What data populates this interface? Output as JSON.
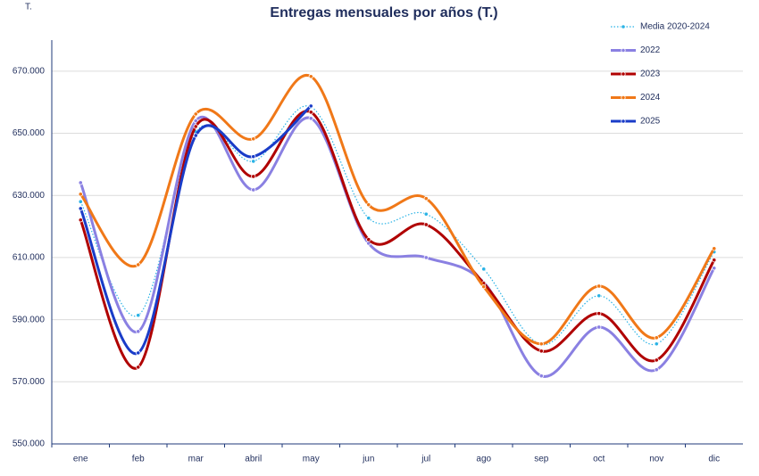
{
  "chart_data": {
    "type": "line",
    "title": "Entregas mensuales por años (T.)",
    "unit_label": "T.",
    "categories": [
      "ene",
      "feb",
      "mar",
      "abril",
      "may",
      "jun",
      "jul",
      "ago",
      "sep",
      "oct",
      "nov",
      "dic"
    ],
    "ylim": [
      550000,
      680000
    ],
    "yticks": [
      {
        "value": 550000,
        "label": "550.000"
      },
      {
        "value": 570000,
        "label": "570.000"
      },
      {
        "value": 590000,
        "label": "590.000"
      },
      {
        "value": 610000,
        "label": "610.000"
      },
      {
        "value": 630000,
        "label": "630.000"
      },
      {
        "value": 650000,
        "label": "650.000"
      },
      {
        "value": 670000,
        "label": "670.000"
      }
    ],
    "grid": true,
    "legend": "top-right",
    "series": [
      {
        "name": "Media 2020-2024",
        "color": "#2ab3e6",
        "dashed": true,
        "values": [
          628000,
          591400,
          650500,
          641000,
          658500,
          622700,
          624000,
          606300,
          582000,
          597700,
          582200,
          611800
        ]
      },
      {
        "name": "2022",
        "color": "#8a80e2",
        "values": [
          634100,
          586200,
          654000,
          631800,
          654800,
          614600,
          610000,
          602000,
          571900,
          587600,
          573900,
          606600
        ]
      },
      {
        "name": "2023",
        "color": "#b00000",
        "values": [
          622100,
          574700,
          652200,
          636100,
          656800,
          615800,
          620600,
          601700,
          579900,
          592000,
          577000,
          609200
        ]
      },
      {
        "name": "2024",
        "color": "#f07818",
        "values": [
          630400,
          607700,
          656200,
          648200,
          668300,
          627000,
          629000,
          600600,
          582200,
          600800,
          584200,
          612900
        ]
      },
      {
        "name": "2025",
        "color": "#1a3cc8",
        "values": [
          625800,
          579300,
          649300,
          642500,
          658800,
          null,
          null,
          null,
          null,
          null,
          null,
          null
        ]
      }
    ]
  }
}
